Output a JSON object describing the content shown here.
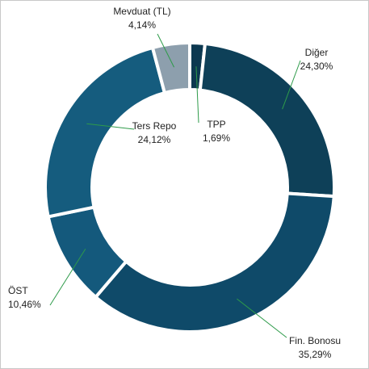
{
  "chart_data": {
    "type": "donut",
    "categories": [
      "TPP",
      "Diğer",
      "Fin. Bonosu",
      "ÖST",
      "Ters Repo",
      "Mevduat (TL)"
    ],
    "values": [
      1.69,
      24.3,
      35.29,
      10.46,
      24.12,
      4.14
    ],
    "value_labels": [
      "1,69%",
      "24,30%",
      "35,29%",
      "10,46%",
      "24,12%",
      "4,14%"
    ],
    "colors": [
      "#0c3850",
      "#0e4058",
      "#0f4a69",
      "#14597c",
      "#155c7e",
      "#8d9fad"
    ]
  }
}
